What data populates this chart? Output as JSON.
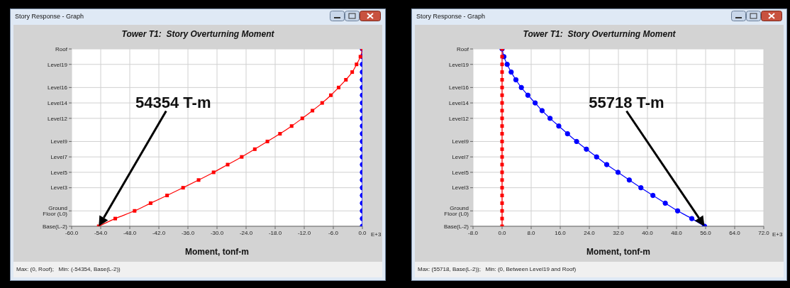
{
  "chart_data": [
    {
      "type": "line",
      "orientation": "horizontal",
      "title": "Tower T1:  Story Overturning Moment",
      "xlabel": "Moment, tonf-m",
      "categories": [
        "Roof",
        null,
        "Level19",
        null,
        null,
        "Level16",
        null,
        "Level14",
        null,
        "Level12",
        null,
        null,
        "Level9",
        null,
        "Level7",
        null,
        "Level5",
        null,
        "Level3",
        null,
        null,
        "Ground Floor (L0)",
        null,
        "Base(L-2)"
      ],
      "series": [
        {
          "color": "#0000ff",
          "marker": "circle",
          "values": [
            0,
            0,
            0,
            0,
            0,
            0,
            0,
            0,
            0,
            0,
            0,
            0,
            0,
            0,
            0,
            0,
            0,
            0,
            0,
            0,
            0,
            0,
            0,
            0
          ]
        },
        {
          "color": "#ff0000",
          "marker": "square",
          "values": [
            0,
            -0.4,
            -1.2,
            -2.1,
            -3.4,
            -4.9,
            -6.5,
            -8.3,
            -10.3,
            -12.4,
            -14.6,
            -17.0,
            -19.6,
            -22.2,
            -24.9,
            -27.8,
            -30.7,
            -33.8,
            -37.0,
            -40.3,
            -43.7,
            -47.0,
            -51.0,
            -54.4
          ]
        }
      ],
      "xlim": [
        -60,
        0
      ],
      "xticks": [
        {
          "value": -60,
          "label": "-60.0"
        },
        {
          "value": -54,
          "label": "-54.0"
        },
        {
          "value": -48,
          "label": "-48.0"
        },
        {
          "value": -42,
          "label": "-42.0"
        },
        {
          "value": -36,
          "label": "-36.0"
        },
        {
          "value": -30,
          "label": "-30.0"
        },
        {
          "value": -24,
          "label": "-24.0"
        },
        {
          "value": -18,
          "label": "-18.0"
        },
        {
          "value": -12,
          "label": "-12.0"
        },
        {
          "value": -6,
          "label": "-6.0"
        },
        {
          "value": 0,
          "label": "0.0"
        }
      ],
      "grid": true,
      "annotations": [
        "Story Response - Graph",
        "E+3",
        "Max: (0, Roof);   Min: (-54354, Base(L-2))",
        "54354 T-m"
      ]
    },
    {
      "type": "line",
      "orientation": "horizontal",
      "title": "Tower T1:  Story Overturning Moment",
      "xlabel": "Moment, tonf-m",
      "categories": [
        "Roof",
        null,
        "Level19",
        null,
        null,
        "Level16",
        null,
        "Level14",
        null,
        "Level12",
        null,
        null,
        "Level9",
        null,
        "Level7",
        null,
        "Level5",
        null,
        "Level3",
        null,
        null,
        "Ground Floor (L0)",
        null,
        "Base(L-2)"
      ],
      "series": [
        {
          "color": "#0000ff",
          "marker": "circle",
          "values": [
            0,
            0.5,
            1.4,
            2.5,
            3.8,
            5.3,
            7.1,
            9.1,
            11.0,
            13.2,
            15.6,
            18.0,
            20.5,
            23.2,
            26.0,
            28.8,
            31.9,
            35.0,
            38.2,
            41.5,
            44.9,
            48.3,
            52.2,
            55.7
          ]
        },
        {
          "color": "#ff0000",
          "marker": "square",
          "values": [
            0,
            0,
            0,
            0,
            0,
            0,
            0,
            0,
            0,
            0,
            0,
            0,
            0,
            0,
            0,
            0,
            0,
            0,
            0,
            0,
            0,
            0,
            0,
            0
          ]
        }
      ],
      "xlim": [
        -8,
        72
      ],
      "xticks": [
        {
          "value": -8,
          "label": "-8.0"
        },
        {
          "value": 0,
          "label": "0.0"
        },
        {
          "value": 8,
          "label": "8.0"
        },
        {
          "value": 16,
          "label": "16.0"
        },
        {
          "value": 24,
          "label": "24.0"
        },
        {
          "value": 32,
          "label": "32.0"
        },
        {
          "value": 40,
          "label": "40.0"
        },
        {
          "value": 48,
          "label": "48.0"
        },
        {
          "value": 56,
          "label": "56.0"
        },
        {
          "value": 64,
          "label": "64.0"
        },
        {
          "value": 72,
          "label": "72.0"
        }
      ],
      "grid": true,
      "annotations": [
        "Story Response - Graph",
        "E+3",
        "Max: (55718, Base(L-2));   Min: (0, Between Level19 and Roof)",
        "55718 T-m"
      ]
    }
  ]
}
